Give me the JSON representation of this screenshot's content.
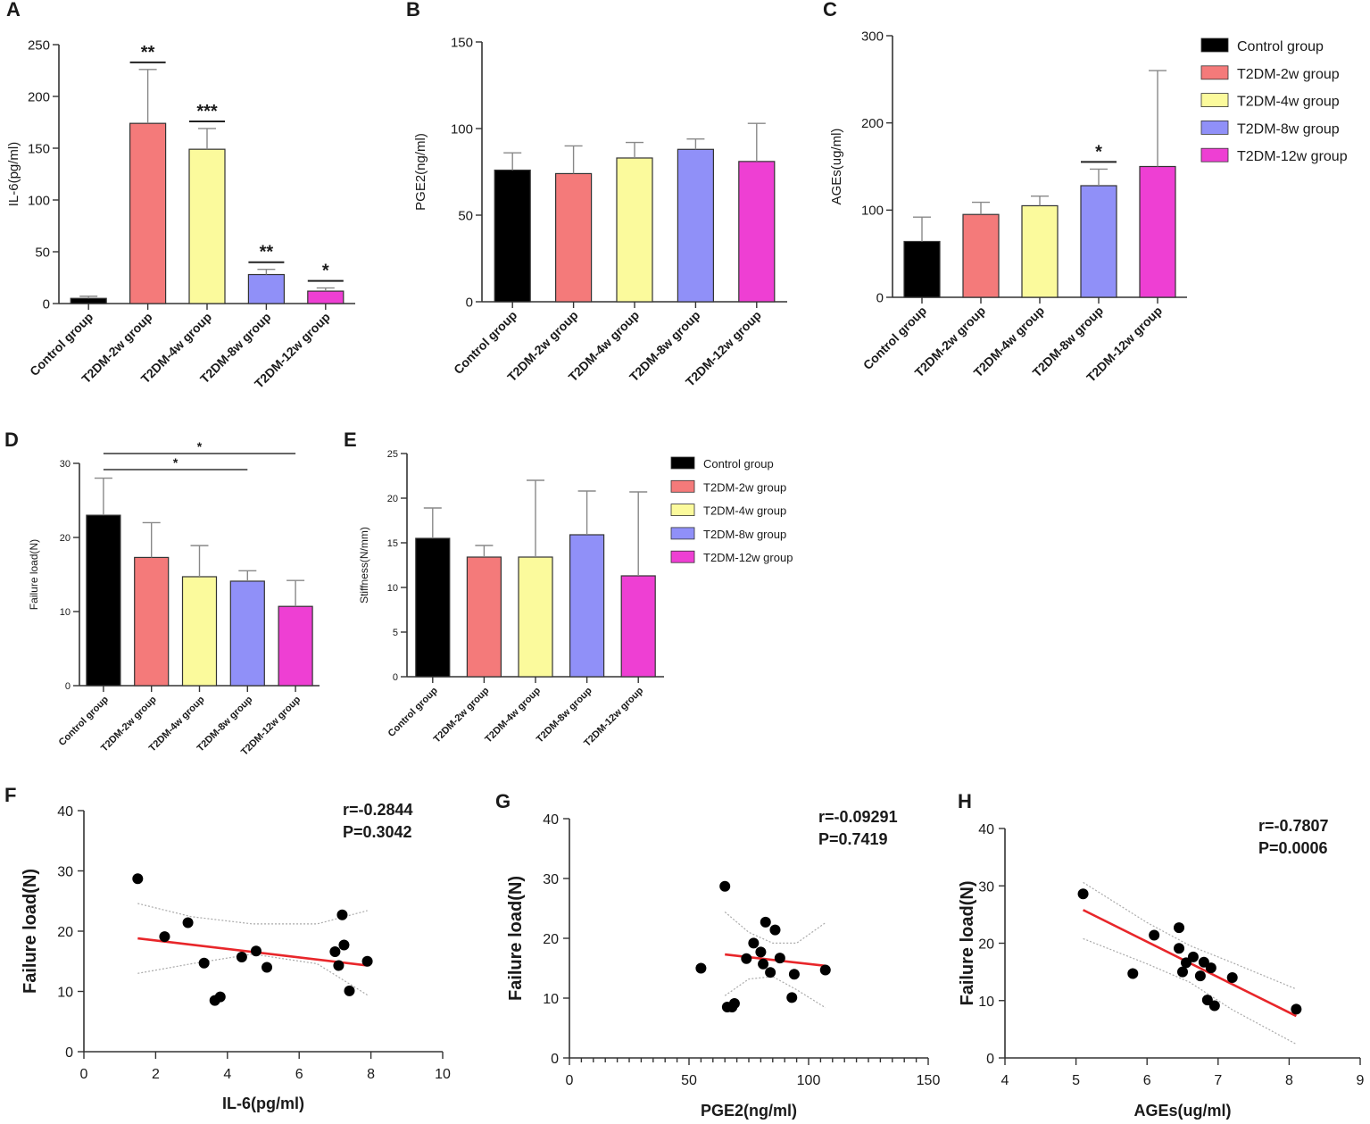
{
  "colors": {
    "Control group": "#000000",
    "T2DM-2w group": "#f47a7a",
    "T2DM-4w group": "#fbfa9c",
    "T2DM-8w group": "#9090f8",
    "T2DM-12w group": "#ee3fd3",
    "fit_line": "#e8262a",
    "confidence_band": "#aaaaaa"
  },
  "chart_data": [
    {
      "panel": "A",
      "type": "bar",
      "categories": [
        "Control group",
        "T2DM-2w group",
        "T2DM-4w group",
        "T2DM-8w group",
        "T2DM-12w group"
      ],
      "values": [
        5,
        174,
        149,
        28,
        12
      ],
      "errors": [
        2,
        52,
        20,
        5,
        3
      ],
      "significance": [
        "",
        "**",
        "***",
        "**",
        "*"
      ],
      "ylabel": "IL-6(pg/ml)",
      "xlabel": "",
      "ylim": [
        0,
        250
      ],
      "yticks": [
        0,
        50,
        100,
        150,
        200,
        250
      ],
      "legend": false
    },
    {
      "panel": "B",
      "type": "bar",
      "categories": [
        "Control group",
        "T2DM-2w group",
        "T2DM-4w group",
        "T2DM-8w group",
        "T2DM-12w group"
      ],
      "values": [
        76,
        74,
        83,
        88,
        81
      ],
      "errors": [
        10,
        16,
        9,
        6,
        22
      ],
      "significance": [
        "",
        "",
        "",
        "",
        ""
      ],
      "ylabel": "PGE2(ng/ml)",
      "xlabel": "",
      "ylim": [
        0,
        150
      ],
      "yticks": [
        0,
        50,
        100,
        150
      ],
      "legend": false
    },
    {
      "panel": "C",
      "type": "bar",
      "categories": [
        "Control group",
        "T2DM-2w group",
        "T2DM-4w group",
        "T2DM-8w group",
        "T2DM-12w group"
      ],
      "values": [
        64,
        95,
        105,
        128,
        150
      ],
      "errors": [
        28,
        14,
        11,
        19,
        110
      ],
      "significance": [
        "",
        "",
        "",
        "*",
        ""
      ],
      "ylabel": "AGEs(ug/ml)",
      "xlabel": "",
      "ylim": [
        0,
        300
      ],
      "yticks": [
        0,
        100,
        200,
        300
      ],
      "legend": true,
      "legend_position": "right"
    },
    {
      "panel": "D",
      "type": "bar",
      "categories": [
        "Control group",
        "T2DM-2w group",
        "T2DM-4w group",
        "T2DM-8w group",
        "T2DM-12w group"
      ],
      "values": [
        23,
        17.3,
        14.7,
        14.1,
        10.7
      ],
      "errors": [
        5,
        4.7,
        4.2,
        1.4,
        3.5
      ],
      "significance": [
        "",
        "",
        "",
        "",
        ""
      ],
      "comparisons": [
        {
          "from": "Control group",
          "to": "T2DM-8w group",
          "label": "*"
        },
        {
          "from": "Control group",
          "to": "T2DM-12w group",
          "label": "*"
        }
      ],
      "ylabel": "Failure load(N)",
      "xlabel": "",
      "ylim": [
        0,
        30
      ],
      "yticks": [
        0,
        10,
        20,
        30
      ],
      "legend": false
    },
    {
      "panel": "E",
      "type": "bar",
      "categories": [
        "Control group",
        "T2DM-2w group",
        "T2DM-4w group",
        "T2DM-8w group",
        "T2DM-12w group"
      ],
      "values": [
        15.5,
        13.4,
        13.4,
        15.9,
        11.3
      ],
      "errors": [
        3.4,
        1.3,
        8.6,
        4.9,
        9.4
      ],
      "significance": [
        "",
        "",
        "",
        "",
        ""
      ],
      "ylabel": "Stiffness(N/mm)",
      "xlabel": "",
      "ylim": [
        0,
        25
      ],
      "yticks": [
        0,
        5,
        10,
        15,
        20,
        25
      ],
      "legend": true,
      "legend_position": "right"
    },
    {
      "panel": "F",
      "type": "scatter",
      "x": [
        1.5,
        2.25,
        2.9,
        3.35,
        3.65,
        3.8,
        4.4,
        4.8,
        5.1,
        7.0,
        7.1,
        7.2,
        7.25,
        7.4,
        7.9
      ],
      "y": [
        28.7,
        19.1,
        21.4,
        14.7,
        8.5,
        9.1,
        15.7,
        16.7,
        14.0,
        16.6,
        14.3,
        22.7,
        17.7,
        10.1,
        15.0
      ],
      "fit": {
        "x": [
          1.5,
          7.9
        ],
        "y": [
          18.8,
          14.3
        ]
      },
      "ci_upper": [
        [
          1.5,
          24.6
        ],
        [
          3,
          22.4
        ],
        [
          4.7,
          21.2
        ],
        [
          6.5,
          21.2
        ],
        [
          7.9,
          23.4
        ]
      ],
      "ci_lower": [
        [
          1.5,
          13.0
        ],
        [
          3,
          14.6
        ],
        [
          4.7,
          16.2
        ],
        [
          6.5,
          14.6
        ],
        [
          7.9,
          9.4
        ]
      ],
      "stat_r": "r=-0.2844",
      "stat_p": "P=0.3042",
      "xlabel": "IL-6(pg/ml)",
      "ylabel": "Failure load(N)",
      "xlim": [
        0,
        10
      ],
      "ylim": [
        0,
        40
      ],
      "xticks": [
        0,
        2,
        4,
        6,
        8,
        10
      ],
      "yticks": [
        0,
        10,
        20,
        30,
        40
      ]
    },
    {
      "panel": "G",
      "type": "scatter",
      "x": [
        55,
        65,
        66,
        68,
        69,
        74,
        77,
        80,
        81,
        82,
        84,
        86,
        88,
        93,
        94,
        107
      ],
      "y": [
        15.0,
        28.7,
        8.5,
        8.5,
        9.1,
        16.6,
        19.2,
        17.7,
        15.7,
        22.7,
        14.3,
        21.4,
        16.7,
        10.1,
        14.0,
        14.7
      ],
      "fit": {
        "x": [
          65,
          107
        ],
        "y": [
          17.3,
          15.4
        ]
      },
      "ci_upper": [
        [
          65,
          24.4
        ],
        [
          75,
          21.0
        ],
        [
          85,
          19.2
        ],
        [
          95,
          19.2
        ],
        [
          107,
          22.6
        ]
      ],
      "ci_lower": [
        [
          65,
          10.4
        ],
        [
          75,
          13.2
        ],
        [
          85,
          13.6
        ],
        [
          95,
          11.4
        ],
        [
          107,
          8.4
        ]
      ],
      "stat_r": "r=-0.09291",
      "stat_p": "P=0.7419",
      "xlabel": "PGE2(ng/ml)",
      "ylabel": "Failure load(N)",
      "xlim": [
        0,
        150
      ],
      "ylim": [
        0,
        40
      ],
      "xticks": [
        0,
        50,
        100,
        150
      ],
      "yticks": [
        0,
        10,
        20,
        30,
        40
      ]
    },
    {
      "panel": "H",
      "type": "scatter",
      "x": [
        5.1,
        5.8,
        6.1,
        6.45,
        6.45,
        6.5,
        6.55,
        6.65,
        6.75,
        6.8,
        6.85,
        6.9,
        6.95,
        7.2,
        8.1
      ],
      "y": [
        28.6,
        14.7,
        21.4,
        22.7,
        19.1,
        15.0,
        16.6,
        17.6,
        14.3,
        16.7,
        10.1,
        15.7,
        9.1,
        14.0,
        8.5
      ],
      "fit": {
        "x": [
          5.1,
          8.1
        ],
        "y": [
          25.8,
          7.3
        ]
      },
      "ci_upper": [
        [
          5.1,
          30.6
        ],
        [
          6.0,
          23.6
        ],
        [
          6.6,
          19.6
        ],
        [
          7.2,
          16.6
        ],
        [
          8.1,
          12.0
        ]
      ],
      "ci_lower": [
        [
          5.1,
          20.8
        ],
        [
          6.0,
          16.4
        ],
        [
          6.6,
          13.2
        ],
        [
          7.2,
          8.4
        ],
        [
          8.1,
          2.4
        ]
      ],
      "stat_r": "r=-0.7807",
      "stat_p": "P=0.0006",
      "xlabel": "AGEs(ug/ml)",
      "ylabel": "Failure load(N)",
      "xlim": [
        4,
        9
      ],
      "ylim": [
        0,
        40
      ],
      "xticks": [
        4,
        5,
        6,
        7,
        8,
        9
      ],
      "yticks": [
        0,
        10,
        20,
        30,
        40
      ]
    }
  ]
}
